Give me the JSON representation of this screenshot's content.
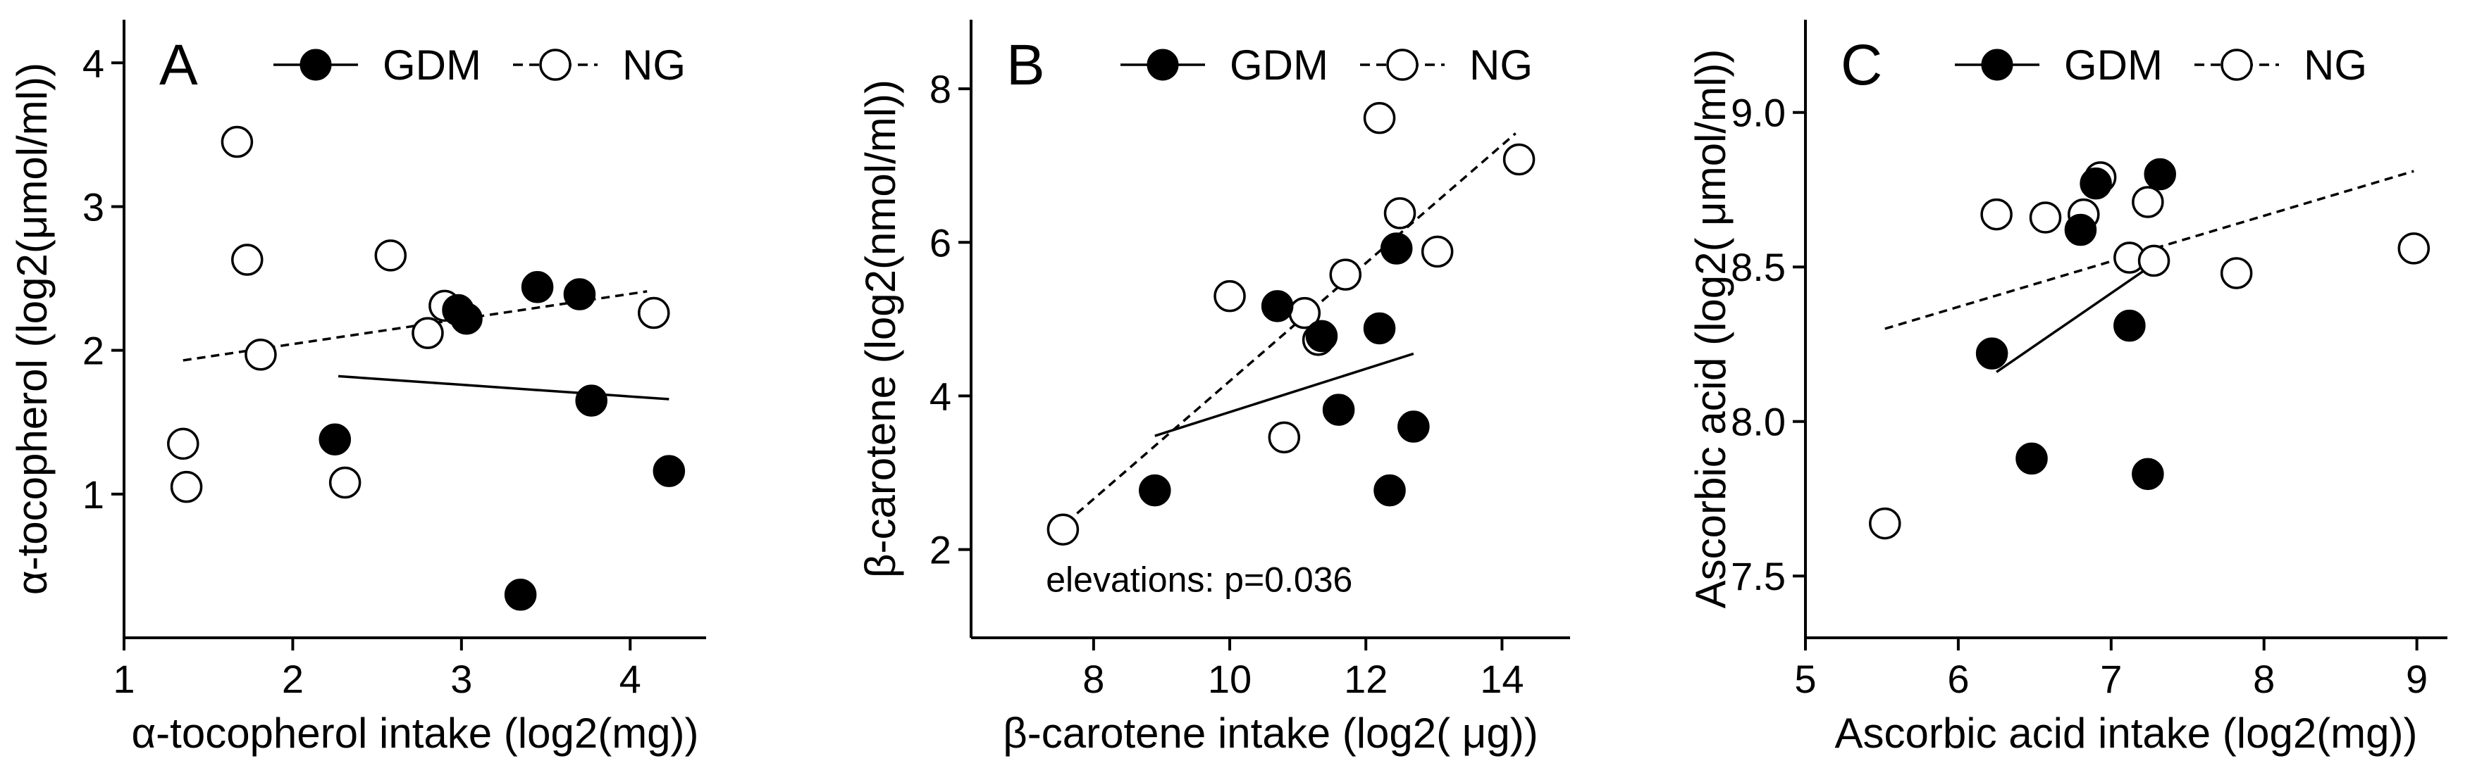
{
  "chart_data": [
    {
      "type": "scatter",
      "panel": "A",
      "legend": {
        "gdm_label": "GDM",
        "ng_label": "NG"
      },
      "xlabel": "α-tocopherol intake (log2(mg))",
      "ylabel": "α-tocopherol (log2(μmol/ml))",
      "xlim": [
        1,
        4.45
      ],
      "ylim": [
        0,
        4.3
      ],
      "xticks": [
        1,
        2,
        3,
        4
      ],
      "yticks": [
        1,
        2,
        3,
        4
      ],
      "xtick_labels": [
        "1",
        "2",
        "3",
        "4"
      ],
      "ytick_labels": [
        "1",
        "2",
        "3",
        "4"
      ],
      "annotation": "",
      "series": [
        {
          "name": "GDM",
          "filled": true,
          "x": [
            2.25,
            2.98,
            3.03,
            3.45,
            3.7,
            3.77,
            4.23,
            3.35
          ],
          "y": [
            1.38,
            2.28,
            2.22,
            2.44,
            2.39,
            1.65,
            1.16,
            0.3
          ]
        },
        {
          "name": "NG",
          "filled": false,
          "x": [
            1.35,
            1.37,
            1.67,
            1.73,
            1.81,
            2.31,
            2.58,
            2.8,
            2.9,
            4.14
          ],
          "y": [
            1.35,
            1.05,
            3.45,
            2.63,
            1.97,
            1.08,
            2.66,
            2.12,
            2.31,
            2.26
          ]
        }
      ],
      "fit_lines": [
        {
          "name": "GDM",
          "style": "solid",
          "x": [
            2.27,
            4.23
          ],
          "y": [
            1.82,
            1.66
          ]
        },
        {
          "name": "NG",
          "style": "dashed",
          "x": [
            1.35,
            4.1
          ],
          "y": [
            1.93,
            2.41
          ]
        }
      ]
    },
    {
      "type": "scatter",
      "panel": "B",
      "legend": {
        "gdm_label": "GDM",
        "ng_label": "NG"
      },
      "xlabel": "β-carotene intake (log2( μg))",
      "ylabel": "β-carotene (log2(nmol/ml))",
      "xlim": [
        6.2,
        15
      ],
      "ylim": [
        0.85,
        8.9
      ],
      "xticks": [
        8,
        10,
        12,
        14
      ],
      "yticks": [
        2,
        4,
        6,
        8
      ],
      "xtick_labels": [
        "8",
        "10",
        "12",
        "14"
      ],
      "ytick_labels": [
        "2",
        "4",
        "6",
        "8"
      ],
      "annotation": "elevations: p=0.036",
      "series": [
        {
          "name": "GDM",
          "filled": true,
          "x": [
            8.9,
            10.7,
            11.35,
            11.6,
            12.2,
            12.45,
            12.35,
            12.7
          ],
          "y": [
            2.77,
            5.17,
            4.78,
            3.82,
            4.88,
            5.92,
            2.77,
            3.6
          ]
        },
        {
          "name": "NG",
          "filled": false,
          "x": [
            7.55,
            10,
            10.8,
            11.1,
            11.3,
            11.7,
            12.2,
            12.5,
            13.05,
            14.25
          ],
          "y": [
            2.26,
            5.3,
            3.46,
            5.08,
            4.73,
            5.58,
            7.62,
            6.38,
            5.88,
            7.08
          ]
        }
      ],
      "fit_lines": [
        {
          "name": "GDM",
          "style": "solid",
          "x": [
            8.9,
            12.7
          ],
          "y": [
            3.48,
            4.55
          ]
        },
        {
          "name": "NG",
          "style": "dashed",
          "x": [
            7.6,
            14.2
          ],
          "y": [
            2.35,
            7.42
          ]
        }
      ]
    },
    {
      "type": "scatter",
      "panel": "C",
      "legend": {
        "gdm_label": "GDM",
        "ng_label": "NG"
      },
      "xlabel": "Ascorbic acid intake (log2(mg))",
      "ylabel": "Ascorbic acid (log2( μmol/ml))",
      "xlim": [
        5,
        9.2
      ],
      "ylim": [
        7.3,
        9.3
      ],
      "xticks": [
        5,
        6,
        7,
        8,
        9
      ],
      "yticks": [
        7.5,
        8.0,
        8.5,
        9.0
      ],
      "xtick_labels": [
        "5",
        "6",
        "7",
        "8",
        "9"
      ],
      "ytick_labels": [
        "7.5",
        "8.0",
        "8.5",
        "9.0"
      ],
      "annotation": "",
      "series": [
        {
          "name": "GDM",
          "filled": true,
          "x": [
            6.22,
            6.48,
            6.8,
            6.9,
            7.12,
            7.24,
            7.32
          ],
          "y": [
            8.22,
            7.88,
            8.62,
            8.77,
            8.31,
            7.83,
            8.8
          ]
        },
        {
          "name": "NG",
          "filled": false,
          "x": [
            5.52,
            6.25,
            6.57,
            6.82,
            6.93,
            7.12,
            7.24,
            7.28,
            7.82,
            8.98
          ],
          "y": [
            7.67,
            8.67,
            8.66,
            8.67,
            8.79,
            8.53,
            8.71,
            8.52,
            8.48,
            8.56
          ]
        }
      ],
      "fit_lines": [
        {
          "name": "GDM",
          "style": "solid",
          "x": [
            6.25,
            7.25
          ],
          "y": [
            8.16,
            8.5
          ]
        },
        {
          "name": "NG",
          "style": "dashed",
          "x": [
            5.52,
            8.98
          ],
          "y": [
            8.3,
            8.81
          ]
        }
      ]
    }
  ]
}
